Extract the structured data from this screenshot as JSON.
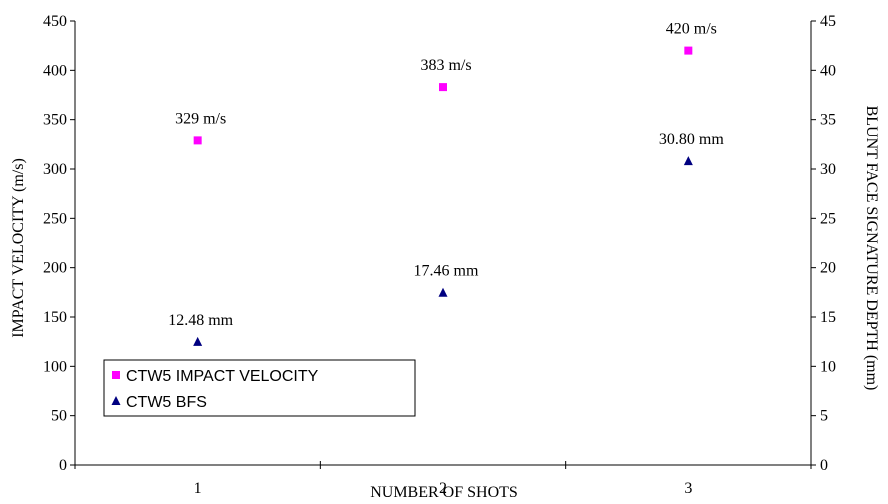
{
  "chart_data": {
    "type": "scatter",
    "xlabel": "NUMBER OF SHOTS",
    "ylabel": "IMPACT VELOCITY (m/s)",
    "y2label": "BLUNT FACE SIGNATURE DEPTH (mm)",
    "x": [
      1,
      2,
      3
    ],
    "x_ticks": [
      "1",
      "2",
      "3"
    ],
    "ylim": [
      0,
      450
    ],
    "y_ticks": [
      0,
      50,
      100,
      150,
      200,
      250,
      300,
      350,
      400,
      450
    ],
    "y2lim": [
      0,
      45
    ],
    "y2_ticks": [
      0,
      5,
      10,
      15,
      20,
      25,
      30,
      35,
      40,
      45
    ],
    "grid": false,
    "legend_position": "bottom-left",
    "series": [
      {
        "name": "CTW5 IMPACT VELOCITY",
        "axis": "left",
        "marker": "square",
        "color": "#ff00ff",
        "values": [
          329,
          383,
          420
        ],
        "labels": [
          "329 m/s",
          "383 m/s",
          "420 m/s"
        ]
      },
      {
        "name": "CTW5 BFS",
        "axis": "right",
        "marker": "triangle",
        "color": "#000080",
        "values": [
          12.48,
          17.46,
          30.8
        ],
        "labels": [
          "12.48 mm",
          "17.46 mm",
          "30.80 mm"
        ]
      }
    ]
  }
}
